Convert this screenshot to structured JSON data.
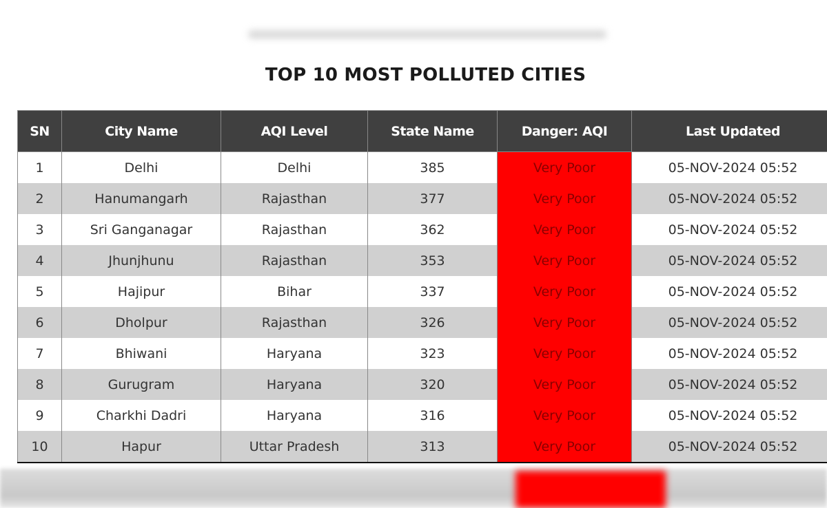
{
  "title": "TOP 10 MOST POLLUTED CITIES",
  "headers": [
    "SN",
    "City Name",
    "AQI Level",
    "State Name",
    "Danger: AQI",
    "Last Updated"
  ],
  "rows": [
    [
      "1",
      "Delhi",
      "Delhi",
      "385",
      "Very Poor",
      "05-NOV-2024 05:52"
    ],
    [
      "2",
      "Hanumangarh",
      "Rajasthan",
      "377",
      "Very Poor",
      "05-NOV-2024 05:52"
    ],
    [
      "3",
      "Sri Ganganagar",
      "Rajasthan",
      "362",
      "Very Poor",
      "05-NOV-2024 05:52"
    ],
    [
      "4",
      "Jhunjhunu",
      "Rajasthan",
      "353",
      "Very Poor",
      "05-NOV-2024 05:52"
    ],
    [
      "5",
      "Hajipur",
      "Bihar",
      "337",
      "Very Poor",
      "05-NOV-2024 05:52"
    ],
    [
      "6",
      "Dholpur",
      "Rajasthan",
      "326",
      "Very Poor",
      "05-NOV-2024 05:52"
    ],
    [
      "7",
      "Bhiwani",
      "Haryana",
      "323",
      "Very Poor",
      "05-NOV-2024 05:52"
    ],
    [
      "8",
      "Gurugram",
      "Haryana",
      "320",
      "Very Poor",
      "05-NOV-2024 05:52"
    ],
    [
      "9",
      "Charkhi Dadri",
      "Haryana",
      "316",
      "Very Poor",
      "05-NOV-2024 05:52"
    ],
    [
      "10",
      "Hapur",
      "Uttar Pradesh",
      "313",
      "Very Poor",
      "05-NOV-2024 05:52"
    ]
  ],
  "colors": {
    "header": "#404040",
    "danger": "#ff0000",
    "alt_row": "#d0d0d0"
  }
}
